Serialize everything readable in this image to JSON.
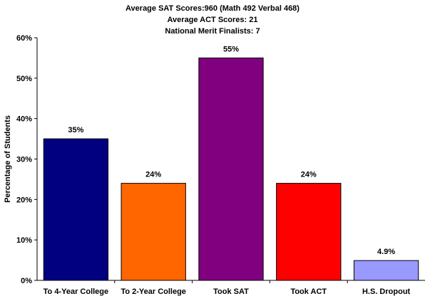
{
  "chart_data": {
    "type": "bar",
    "title_lines": [
      "Average SAT Scores:960 (Math 492 Verbal 468)",
      "Average ACT Scores: 21",
      "National Merit Finalists: 7"
    ],
    "xlabel": "",
    "ylabel": "Percentage of Students",
    "categories": [
      "To 4-Year College",
      "To 2-Year College",
      "Took SAT",
      "Took ACT",
      "H.S. Dropout"
    ],
    "values": [
      35,
      24,
      55,
      24,
      4.9
    ],
    "data_labels": [
      "35%",
      "24%",
      "55%",
      "24%",
      "4.9%"
    ],
    "colors": [
      "#000080",
      "#ff6600",
      "#800080",
      "#ff0000",
      "#9999ff"
    ],
    "ylim": [
      0,
      60
    ],
    "yticks": [
      0,
      10,
      20,
      30,
      40,
      50,
      60
    ],
    "ytick_labels": [
      "0%",
      "10%",
      "20%",
      "30%",
      "40%",
      "50%",
      "60%"
    ],
    "grid": false,
    "legend": "none"
  }
}
